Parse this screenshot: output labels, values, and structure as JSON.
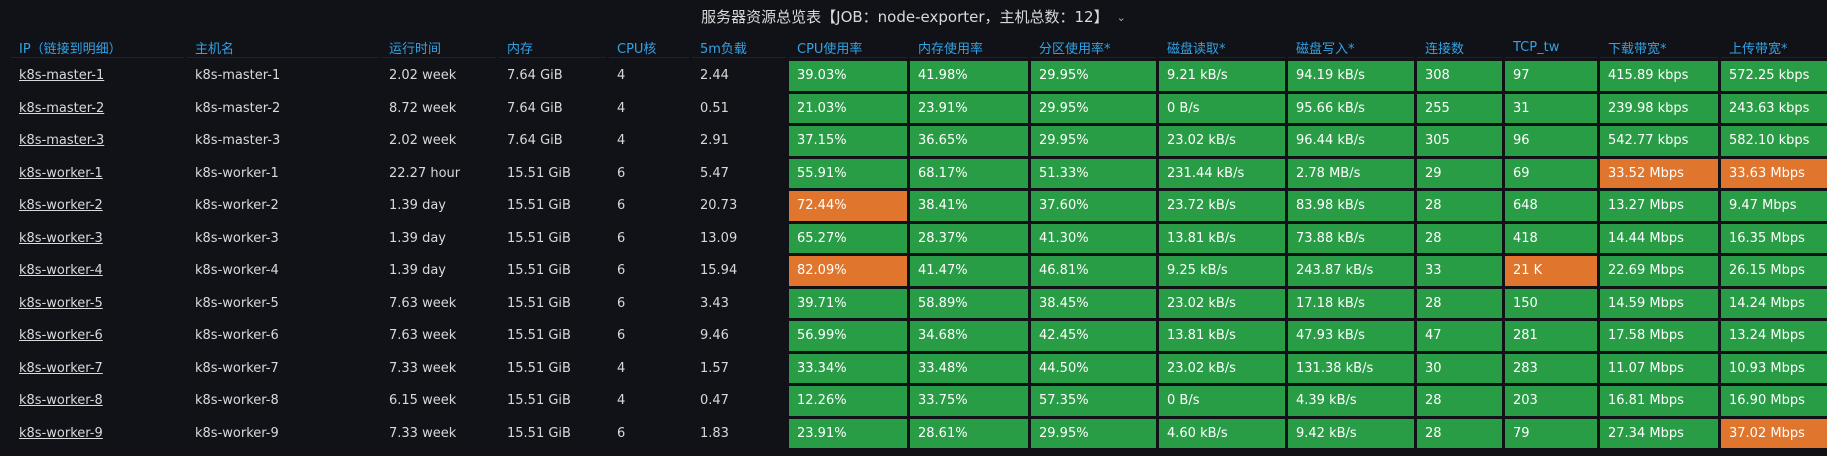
{
  "panel": {
    "title": "服务器资源总览表【JOB：node-exporter，主机总数：12】"
  },
  "colors": {
    "background": "#111217",
    "header_text": "#33a2e5",
    "ok": "#299c46",
    "warning": "#e0752d"
  },
  "table": {
    "columns": [
      "IP（链接到明细）",
      "主机名",
      "运行时间",
      "内存",
      "CPU核",
      "5m负载",
      "CPU使用率",
      "内存使用率",
      "分区使用率*",
      "磁盘读取*",
      "磁盘写入*",
      "连接数",
      "TCP_tw",
      "下载带宽*",
      "上传带宽*"
    ],
    "rows": [
      {
        "ip": "k8s-master-1",
        "host": "k8s-master-1",
        "uptime": "2.02 week",
        "mem": "7.64 GiB",
        "cores": "4",
        "load": "2.44",
        "cpu": "39.03%",
        "memp": "41.98%",
        "disk": "29.95%",
        "read": "9.21 kB/s",
        "write": "94.19 kB/s",
        "conn": "308",
        "tcp": "97",
        "down": "415.89 kbps",
        "up": "572.25 kbps"
      },
      {
        "ip": "k8s-master-2",
        "host": "k8s-master-2",
        "uptime": "8.72 week",
        "mem": "7.64 GiB",
        "cores": "4",
        "load": "0.51",
        "cpu": "21.03%",
        "memp": "23.91%",
        "disk": "29.95%",
        "read": "0 B/s",
        "write": "95.66 kB/s",
        "conn": "255",
        "tcp": "31",
        "down": "239.98 kbps",
        "up": "243.63 kbps"
      },
      {
        "ip": "k8s-master-3",
        "host": "k8s-master-3",
        "uptime": "2.02 week",
        "mem": "7.64 GiB",
        "cores": "4",
        "load": "2.91",
        "cpu": "37.15%",
        "memp": "36.65%",
        "disk": "29.95%",
        "read": "23.02 kB/s",
        "write": "96.44 kB/s",
        "conn": "305",
        "tcp": "96",
        "down": "542.77 kbps",
        "up": "582.10 kbps"
      },
      {
        "ip": "k8s-worker-1",
        "host": "k8s-worker-1",
        "uptime": "22.27 hour",
        "mem": "15.51 GiB",
        "cores": "6",
        "load": "5.47",
        "cpu": "55.91%",
        "memp": "68.17%",
        "disk": "51.33%",
        "read": "231.44 kB/s",
        "write": "2.78 MB/s",
        "conn": "29",
        "tcp": "69",
        "down": "33.52 Mbps",
        "up": "33.63 Mbps"
      },
      {
        "ip": "k8s-worker-2",
        "host": "k8s-worker-2",
        "uptime": "1.39 day",
        "mem": "15.51 GiB",
        "cores": "6",
        "load": "20.73",
        "cpu": "72.44%",
        "memp": "38.41%",
        "disk": "37.60%",
        "read": "23.72 kB/s",
        "write": "83.98 kB/s",
        "conn": "28",
        "tcp": "648",
        "down": "13.27 Mbps",
        "up": "9.47 Mbps"
      },
      {
        "ip": "k8s-worker-3",
        "host": "k8s-worker-3",
        "uptime": "1.39 day",
        "mem": "15.51 GiB",
        "cores": "6",
        "load": "13.09",
        "cpu": "65.27%",
        "memp": "28.37%",
        "disk": "41.30%",
        "read": "13.81 kB/s",
        "write": "73.88 kB/s",
        "conn": "28",
        "tcp": "418",
        "down": "14.44 Mbps",
        "up": "16.35 Mbps"
      },
      {
        "ip": "k8s-worker-4",
        "host": "k8s-worker-4",
        "uptime": "1.39 day",
        "mem": "15.51 GiB",
        "cores": "6",
        "load": "15.94",
        "cpu": "82.09%",
        "memp": "41.47%",
        "disk": "46.81%",
        "read": "9.25 kB/s",
        "write": "243.87 kB/s",
        "conn": "33",
        "tcp": "21 K",
        "down": "22.69 Mbps",
        "up": "26.15 Mbps"
      },
      {
        "ip": "k8s-worker-5",
        "host": "k8s-worker-5",
        "uptime": "7.63 week",
        "mem": "15.51 GiB",
        "cores": "6",
        "load": "3.43",
        "cpu": "39.71%",
        "memp": "58.89%",
        "disk": "38.45%",
        "read": "23.02 kB/s",
        "write": "17.18 kB/s",
        "conn": "28",
        "tcp": "150",
        "down": "14.59 Mbps",
        "up": "14.24 Mbps"
      },
      {
        "ip": "k8s-worker-6",
        "host": "k8s-worker-6",
        "uptime": "7.63 week",
        "mem": "15.51 GiB",
        "cores": "6",
        "load": "9.46",
        "cpu": "56.99%",
        "memp": "34.68%",
        "disk": "42.45%",
        "read": "13.81 kB/s",
        "write": "47.93 kB/s",
        "conn": "47",
        "tcp": "281",
        "down": "17.58 Mbps",
        "up": "13.24 Mbps"
      },
      {
        "ip": "k8s-worker-7",
        "host": "k8s-worker-7",
        "uptime": "7.33 week",
        "mem": "15.51 GiB",
        "cores": "4",
        "load": "1.57",
        "cpu": "33.34%",
        "memp": "33.48%",
        "disk": "44.50%",
        "read": "23.02 kB/s",
        "write": "131.38 kB/s",
        "conn": "30",
        "tcp": "283",
        "down": "11.07 Mbps",
        "up": "10.93 Mbps"
      },
      {
        "ip": "k8s-worker-8",
        "host": "k8s-worker-8",
        "uptime": "6.15 week",
        "mem": "15.51 GiB",
        "cores": "4",
        "load": "0.47",
        "cpu": "12.26%",
        "memp": "33.75%",
        "disk": "57.35%",
        "read": "0 B/s",
        "write": "4.39 kB/s",
        "conn": "28",
        "tcp": "203",
        "down": "16.81 Mbps",
        "up": "16.90 Mbps"
      },
      {
        "ip": "k8s-worker-9",
        "host": "k8s-worker-9",
        "uptime": "7.33 week",
        "mem": "15.51 GiB",
        "cores": "6",
        "load": "1.83",
        "cpu": "23.91%",
        "memp": "28.61%",
        "disk": "29.95%",
        "read": "4.60 kB/s",
        "write": "9.42 kB/s",
        "conn": "28",
        "tcp": "79",
        "down": "27.34 Mbps",
        "up": "37.02 Mbps"
      }
    ]
  },
  "warnings": {
    "k8s-worker-1": [
      "down",
      "up"
    ],
    "k8s-worker-2": [
      "cpu"
    ],
    "k8s-worker-4": [
      "cpu",
      "tcp"
    ],
    "k8s-worker-9": [
      "up"
    ]
  }
}
